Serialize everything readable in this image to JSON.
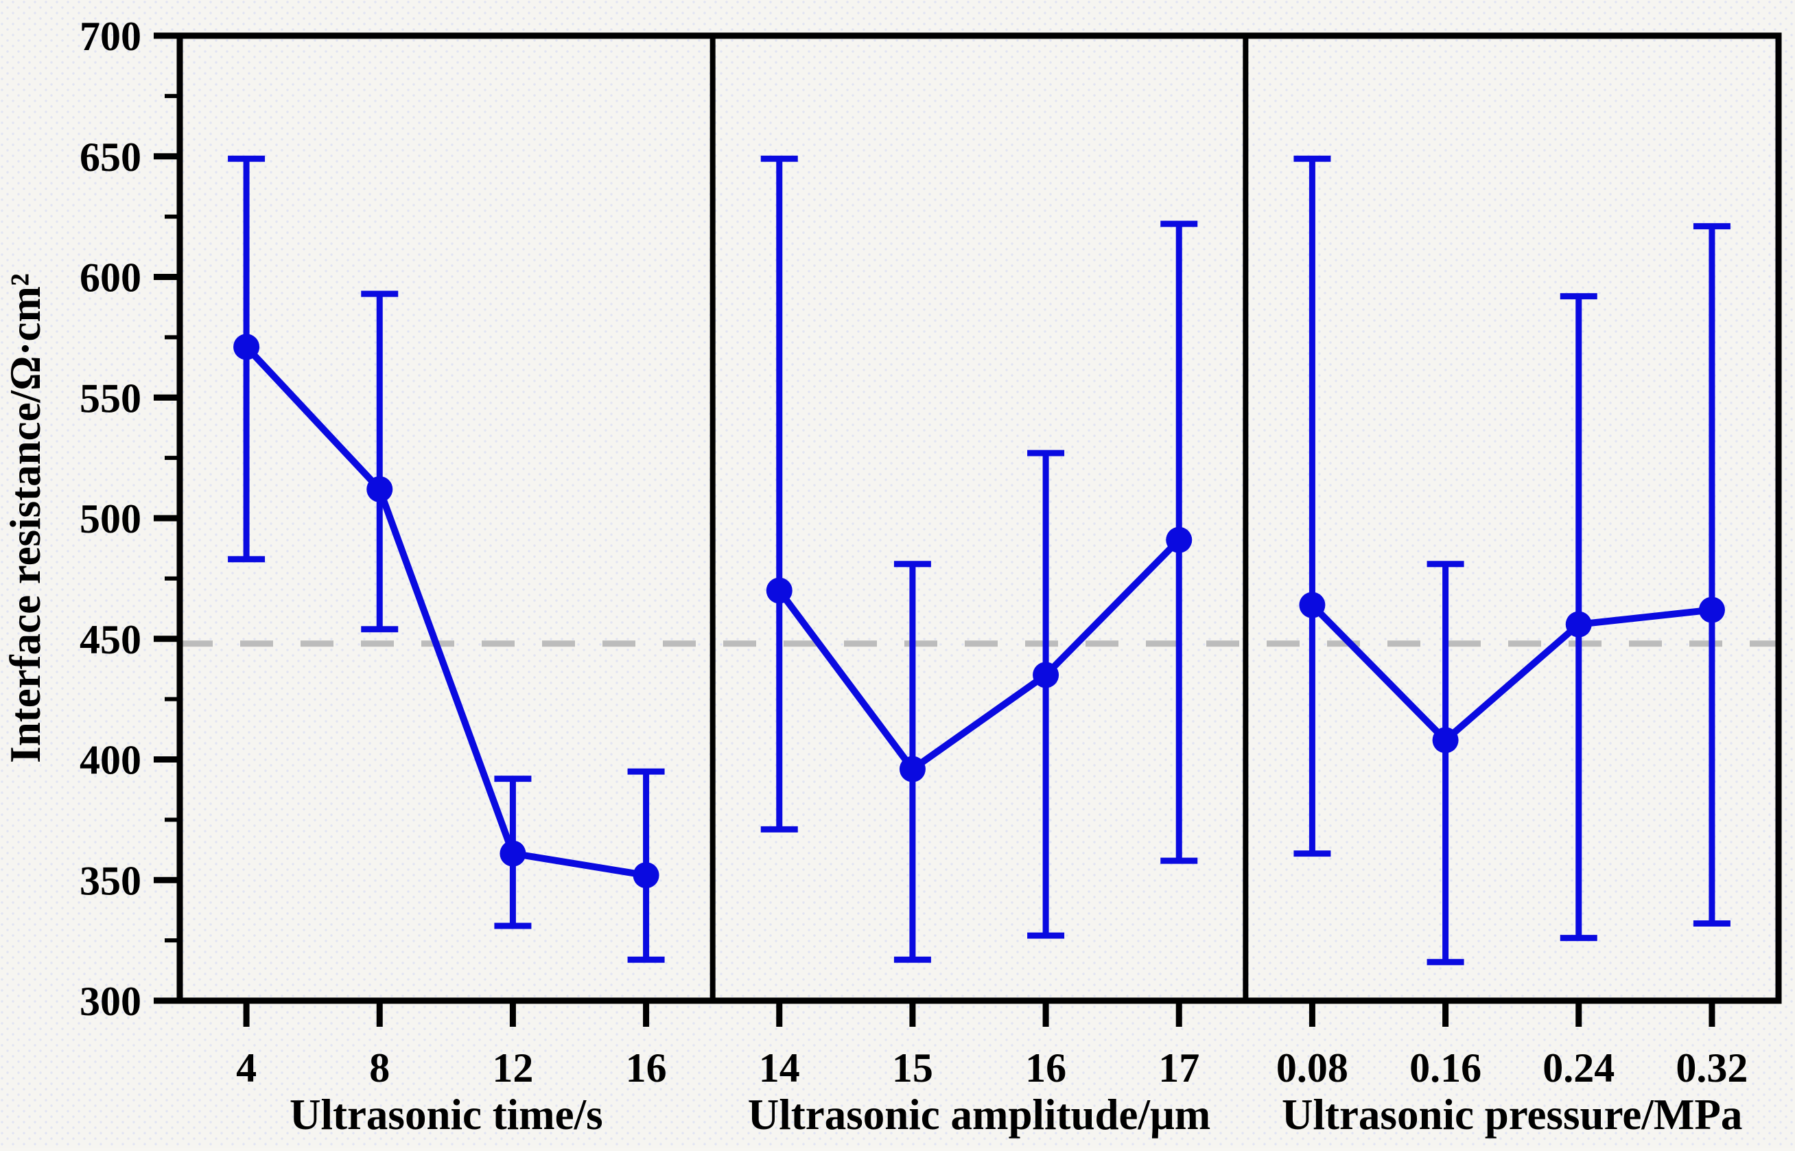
{
  "colors": {
    "series": "#0a0ae0",
    "frame": "#000000",
    "text": "#000000",
    "reference_line": "#bcbcbc",
    "plot_background": "#f6f5f1",
    "dot_texture": "#dde1f2"
  },
  "y_axis": {
    "title": "Interface resistance/Ω·cm²",
    "min": 300,
    "max": 700,
    "major_tick_step": 50,
    "minor_tick_step": 25,
    "major_tick_labels": [
      "300",
      "350",
      "400",
      "450",
      "500",
      "550",
      "600",
      "650",
      "700"
    ]
  },
  "reference_line": {
    "value": 448,
    "style": "dashed"
  },
  "chart_data": [
    {
      "type": "line",
      "panel": 1,
      "xlabel": "Ultrasonic time/s",
      "ylabel": "Interface resistance/Ω·cm²",
      "categories": [
        "4",
        "8",
        "12",
        "16"
      ],
      "ylim": [
        300,
        700
      ],
      "grid": false,
      "legend": "none",
      "reference_line": 448,
      "series": [
        {
          "name": "interface-resistance",
          "marker": "circle",
          "values": [
            571,
            512,
            361,
            352
          ],
          "error_high": [
            649,
            593,
            392,
            395
          ],
          "error_low": [
            483,
            454,
            331,
            317
          ]
        }
      ]
    },
    {
      "type": "line",
      "panel": 2,
      "xlabel": "Ultrasonic amplitude/μm",
      "ylabel": "Interface resistance/Ω·cm²",
      "categories": [
        "14",
        "15",
        "16",
        "17"
      ],
      "ylim": [
        300,
        700
      ],
      "grid": false,
      "legend": "none",
      "reference_line": 448,
      "series": [
        {
          "name": "interface-resistance",
          "marker": "circle",
          "values": [
            470,
            396,
            435,
            491
          ],
          "error_high": [
            649,
            481,
            527,
            622
          ],
          "error_low": [
            371,
            317,
            327,
            358
          ]
        }
      ]
    },
    {
      "type": "line",
      "panel": 3,
      "xlabel": "Ultrasonic pressure/MPa",
      "ylabel": "Interface resistance/Ω·cm²",
      "categories": [
        "0.08",
        "0.16",
        "0.24",
        "0.32"
      ],
      "ylim": [
        300,
        700
      ],
      "grid": false,
      "legend": "none",
      "reference_line": 448,
      "series": [
        {
          "name": "interface-resistance",
          "marker": "circle",
          "values": [
            464,
            408,
            456,
            462
          ],
          "error_high": [
            649,
            481,
            592,
            621
          ],
          "error_low": [
            361,
            316,
            326,
            332
          ]
        }
      ]
    }
  ]
}
